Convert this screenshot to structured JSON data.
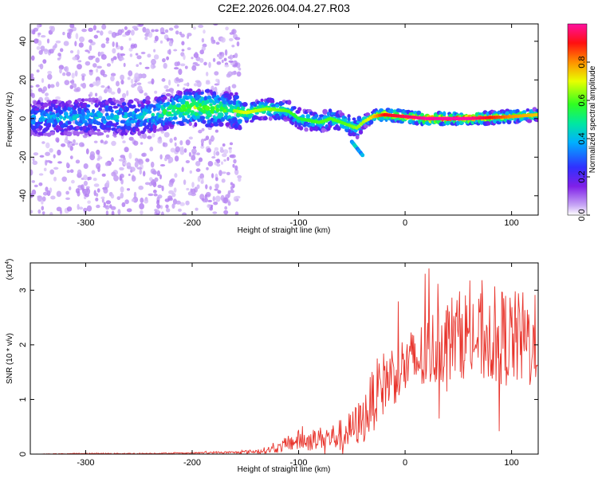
{
  "page": {
    "title": "C2E2.2026.004.04.27.R03"
  },
  "colors": {
    "snr_line": "#e8342c",
    "colormap": [
      "#ffffff",
      "#d9b8f5",
      "#a040f0",
      "#6a00e8",
      "#2050ff",
      "#00c8ff",
      "#00e070",
      "#50ff20",
      "#f0ff00",
      "#ff9000",
      "#ff1010",
      "#ff1090"
    ]
  },
  "chart_data": [
    {
      "type": "heatmap",
      "title": "C2E2.2026.004.04.27.R03",
      "xlabel": "Height of straight line (km)",
      "ylabel": "Frequency (Hz)",
      "xlim": [
        -352,
        125
      ],
      "ylim": [
        -50,
        49
      ],
      "xticks": [
        "-300",
        "-200",
        "-100",
        "0",
        "100"
      ],
      "yticks": [
        "40",
        "20",
        "0",
        "-20",
        "-40"
      ],
      "colorbar": {
        "label": "Normalized spectral amplitude",
        "range": [
          0,
          1
        ],
        "ticks": [
          "0.0",
          "0.2",
          "0.4",
          "0.6",
          "0.8"
        ]
      },
      "ridge": {
        "x": [
          -352,
          -300,
          -250,
          -200,
          -160,
          -150,
          -130,
          -110,
          -100,
          -80,
          -70,
          -55,
          -45,
          -40,
          -30,
          -20,
          0,
          20,
          60,
          100,
          125
        ],
        "freq": [
          0,
          1,
          1,
          6,
          4,
          3,
          5,
          4,
          0,
          -2,
          0,
          -3,
          -5,
          -2,
          1,
          2,
          1,
          0,
          0,
          1,
          2
        ],
        "amplitude": [
          0.35,
          0.4,
          0.4,
          0.65,
          0.55,
          0.6,
          0.55,
          0.5,
          0.45,
          0.5,
          0.5,
          0.5,
          0.55,
          0.55,
          0.65,
          0.8,
          0.85,
          0.9,
          0.9,
          0.7,
          0.65
        ]
      },
      "tail": {
        "x": [
          -50,
          -40
        ],
        "freq": [
          -12,
          -19
        ]
      }
    },
    {
      "type": "line",
      "xlabel": "Height of straight line (km)",
      "ylabel": "SNR (10 * v/v)",
      "yscale_label": "(x10",
      "yscale_exponent": "4",
      "xlim": [
        -352,
        125
      ],
      "ylim": [
        0,
        3.5
      ],
      "xticks": [
        "-300",
        "-200",
        "-100",
        "0",
        "100"
      ],
      "yticks": [
        "3",
        "2",
        "1",
        "0"
      ],
      "series": [
        {
          "x": [
            -352,
            -300,
            -250,
            -200,
            -180,
            -160,
            -140,
            -120,
            -110,
            -100,
            -90,
            -80,
            -70,
            -60,
            -50,
            -45,
            -40,
            -35,
            -30,
            -25,
            -20,
            -15,
            -10,
            -5,
            0,
            10,
            20,
            30,
            40,
            50,
            60,
            70,
            80,
            90,
            100,
            110,
            120,
            125
          ],
          "values": [
            0.0,
            0.01,
            0.01,
            0.02,
            0.03,
            0.03,
            0.05,
            0.1,
            0.2,
            0.25,
            0.25,
            0.3,
            0.3,
            0.35,
            0.45,
            0.55,
            0.6,
            0.8,
            1.0,
            1.2,
            1.3,
            1.4,
            1.5,
            1.55,
            1.6,
            1.7,
            1.8,
            2.0,
            2.1,
            2.2,
            2.2,
            2.1,
            2.2,
            2.15,
            2.1,
            2.1,
            2.05,
            2.0
          ],
          "noise_amplitude": [
            0,
            0.01,
            0.01,
            0.01,
            0.02,
            0.02,
            0.04,
            0.08,
            0.15,
            0.2,
            0.2,
            0.2,
            0.25,
            0.3,
            0.35,
            0.4,
            0.45,
            0.5,
            0.6,
            0.6,
            0.6,
            0.6,
            0.6,
            0.6,
            0.6,
            0.65,
            0.7,
            0.75,
            0.8,
            0.8,
            0.85,
            0.85,
            0.9,
            0.9,
            0.9,
            0.9,
            0.9,
            0.9
          ]
        }
      ]
    }
  ]
}
